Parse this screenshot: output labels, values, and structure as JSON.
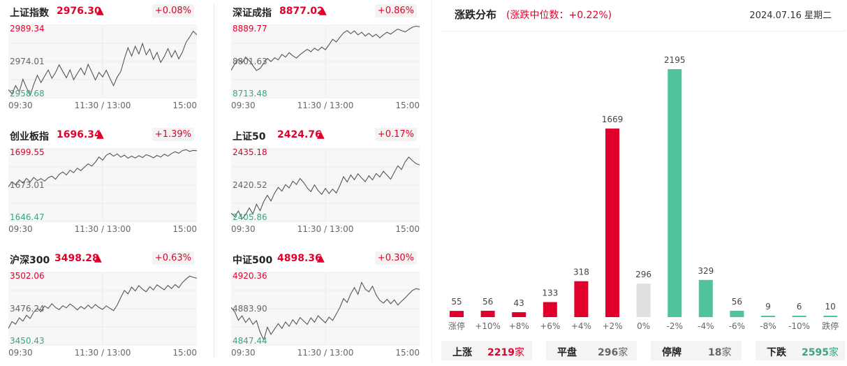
{
  "indices": [
    {
      "name": "上证指数",
      "value": "2976.30",
      "change": "+0.08%",
      "high": "2989.34",
      "mid": "2974.01",
      "low": "2958.68",
      "series": [
        2962.1,
        2960.4,
        2963.8,
        2961.2,
        2966.5,
        2962.9,
        2959.7,
        2964.3,
        2968.2,
        2965.1,
        2967.8,
        2970.4,
        2966.9,
        2969.3,
        2972.6,
        2969.8,
        2967.1,
        2970.5,
        2966.3,
        2968.9,
        2971.2,
        2968.4,
        2972.8,
        2969.6,
        2966.2,
        2969.4,
        2967.5,
        2970.3,
        2966.9,
        2963.8,
        2967.4,
        2969.8,
        2975.2,
        2979.8,
        2976.3,
        2980.4,
        2977.2,
        2981.6,
        2976.8,
        2979.3,
        2974.9,
        2977.8,
        2973.6,
        2976.1,
        2979.4,
        2975.8,
        2978.6,
        2975.1,
        2977.9,
        2982.1,
        2984.3,
        2986.8,
        2985.2
      ]
    },
    {
      "name": "深证成指",
      "value": "8877.02",
      "change": "+0.86%",
      "high": "8889.77",
      "mid": "8801.63",
      "low": "8713.48",
      "series": [
        8780.2,
        8795.6,
        8806.3,
        8798.1,
        8812.4,
        8803.7,
        8791.5,
        8779.8,
        8784.6,
        8797.2,
        8808.9,
        8801.4,
        8810.6,
        8805.3,
        8818.7,
        8812.1,
        8822.9,
        8815.6,
        8809.8,
        8818.2,
        8824.6,
        8831.3,
        8825.4,
        8833.8,
        8828.2,
        8836.5,
        8830.1,
        8842.3,
        8855.6,
        8848.9,
        8860.4,
        8871.2,
        8876.5,
        8869.1,
        8875.8,
        8866.2,
        8872.7,
        8863.4,
        8869.9,
        8861.8,
        8867.5,
        8858.9,
        8866.3,
        8872.5,
        8868.1,
        8874.6,
        8880.3,
        8876.8,
        8873.1,
        8879.4,
        8884.6,
        8887.2,
        8885.8
      ]
    },
    {
      "name": "创业板指",
      "value": "1696.34",
      "change": "+1.39%",
      "high": "1699.55",
      "mid": "1673.01",
      "low": "1646.47",
      "series": [
        1671.8,
        1675.4,
        1673.2,
        1676.8,
        1674.5,
        1677.9,
        1675.3,
        1678.6,
        1676.2,
        1677.8,
        1675.9,
        1678.4,
        1679.6,
        1677.3,
        1680.8,
        1682.6,
        1680.4,
        1683.9,
        1682.1,
        1685.4,
        1683.6,
        1686.2,
        1688.5,
        1686.9,
        1689.8,
        1693.6,
        1691.2,
        1694.8,
        1696.3,
        1694.1,
        1695.8,
        1693.4,
        1694.9,
        1692.6,
        1694.2,
        1692.8,
        1694.5,
        1693.1,
        1695.2,
        1694.3,
        1692.9,
        1694.7,
        1693.5,
        1695.6,
        1694.2,
        1696.1,
        1697.4,
        1696.3,
        1698.2,
        1698.9,
        1697.6,
        1698.4,
        1698.1
      ]
    },
    {
      "name": "上证50",
      "value": "2424.76",
      "change": "+0.17%",
      "high": "2435.18",
      "mid": "2420.52",
      "low": "2405.86",
      "series": [
        2409.2,
        2407.8,
        2410.1,
        2406.9,
        2408.6,
        2411.3,
        2408.9,
        2412.8,
        2410.2,
        2413.9,
        2416.4,
        2414.1,
        2417.3,
        2419.6,
        2418.1,
        2420.7,
        2419.4,
        2422.1,
        2420.8,
        2423.2,
        2421.6,
        2419.4,
        2417.9,
        2420.6,
        2418.3,
        2416.8,
        2419.2,
        2417.1,
        2418.9,
        2417.3,
        2420.4,
        2423.9,
        2421.8,
        2424.6,
        2422.7,
        2425.1,
        2423.4,
        2421.9,
        2424.3,
        2422.6,
        2425.2,
        2423.8,
        2426.1,
        2424.5,
        2422.9,
        2425.7,
        2428.3,
        2426.8,
        2429.9,
        2431.8,
        2430.4,
        2429.2,
        2428.6
      ]
    },
    {
      "name": "沪深300",
      "value": "3498.28",
      "change": "+0.63%",
      "high": "3502.06",
      "mid": "3476.24",
      "low": "3450.43",
      "series": [
        3462.3,
        3467.1,
        3465.2,
        3469.8,
        3467.4,
        3471.6,
        3469.3,
        3473.8,
        3476.4,
        3474.1,
        3478.2,
        3476.5,
        3479.8,
        3477.2,
        3475.6,
        3478.4,
        3476.9,
        3479.6,
        3477.8,
        3475.4,
        3477.9,
        3476.1,
        3478.8,
        3476.5,
        3479.2,
        3477.1,
        3475.8,
        3478.3,
        3476.6,
        3474.9,
        3478.8,
        3484.3,
        3489.2,
        3486.8,
        3491.6,
        3488.9,
        3492.7,
        3490.1,
        3488.3,
        3491.9,
        3489.6,
        3493.2,
        3491.4,
        3489.7,
        3492.8,
        3490.6,
        3493.4,
        3491.2,
        3494.8,
        3497.3,
        3499.4,
        3498.6,
        3497.9
      ]
    },
    {
      "name": "中证500",
      "value": "4898.36",
      "change": "+0.30%",
      "high": "4920.36",
      "mid": "4883.90",
      "low": "4847.44",
      "series": [
        4885.2,
        4880.6,
        4872.3,
        4876.8,
        4870.1,
        4874.5,
        4868.2,
        4871.9,
        4860.4,
        4852.6,
        4865.3,
        4858.1,
        4863.7,
        4868.9,
        4864.2,
        4870.6,
        4866.3,
        4872.8,
        4868.4,
        4875.1,
        4871.6,
        4868.2,
        4874.7,
        4870.3,
        4876.9,
        4873.2,
        4869.8,
        4875.4,
        4872.1,
        4878.6,
        4885.3,
        4894.1,
        4890.2,
        4898.8,
        4905.1,
        4898.4,
        4910.3,
        4903.6,
        4900.9,
        4906.5,
        4897.8,
        4892.3,
        4889.6,
        4893.4,
        4888.9,
        4892.7,
        4887.6,
        4891.4,
        4894.8,
        4898.6,
        4902.3,
        4904.1,
        4903.2
      ]
    }
  ],
  "time_labels": [
    "09:30",
    "11:30 / 13:00",
    "15:00"
  ],
  "distribution": {
    "title": "涨跌分布",
    "median_text": "(涨跌中位数：+0.22%)",
    "date": "2024.07.16 星期二",
    "chart_data": {
      "type": "bar",
      "categories": [
        "涨停",
        "+10%",
        "+8%",
        "+6%",
        "+4%",
        "+2%",
        "0%",
        "-2%",
        "-4%",
        "-6%",
        "-8%",
        "-10%",
        "跌停"
      ],
      "values": [
        55,
        56,
        43,
        133,
        318,
        1669,
        296,
        2195,
        329,
        56,
        9,
        6,
        10
      ],
      "colors": [
        "#e0002b",
        "#e0002b",
        "#e0002b",
        "#e0002b",
        "#e0002b",
        "#e0002b",
        "#e0e0e0",
        "#50c39c",
        "#50c39c",
        "#50c39c",
        "#50c39c",
        "#50c39c",
        "#50c39c"
      ],
      "ylim": [
        0,
        2195
      ]
    }
  },
  "summary": [
    {
      "label": "上涨",
      "count": "2219",
      "unit": "家",
      "color": "#e0002b"
    },
    {
      "label": "平盘",
      "count": "296",
      "unit": "家",
      "color": "#666666"
    },
    {
      "label": "停牌",
      "count": "18",
      "unit": "家",
      "color": "#666666"
    },
    {
      "label": "下跌",
      "count": "2595",
      "unit": "家",
      "color": "#3aa67e"
    }
  ],
  "colors": {
    "up": "#e0002b",
    "down": "#3aa67e",
    "neutral": "#e0e0e0",
    "line": "#555555"
  }
}
